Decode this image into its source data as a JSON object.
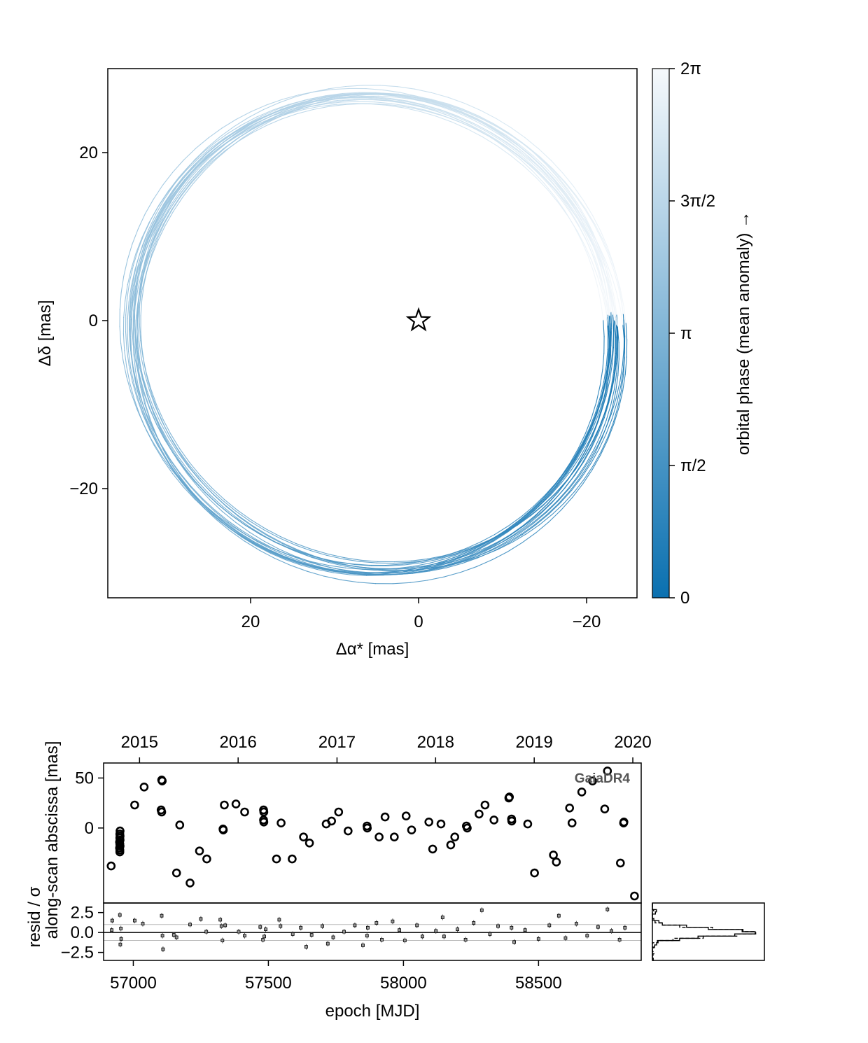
{
  "chart_data": [
    {
      "type": "line",
      "title": "",
      "xlabel": "Δα* [mas]",
      "ylabel": "Δδ [mas]",
      "xlim": [
        37,
        -26
      ],
      "ylim": [
        -33,
        30
      ],
      "x_reversed": true,
      "xticks": [
        {
          "value": 20,
          "label": "20"
        },
        {
          "value": 0,
          "label": "0"
        },
        {
          "value": -20,
          "label": "−20"
        }
      ],
      "yticks": [
        {
          "value": 20,
          "label": "20"
        },
        {
          "value": 0,
          "label": "0"
        },
        {
          "value": -20,
          "label": "−20"
        }
      ],
      "grid": false,
      "orbit_samples": 20,
      "orbit_shape": {
        "center": [
          5.5,
          -1.5
        ],
        "semi_axes": [
          29.0,
          28.0
        ],
        "rotation_deg": 33,
        "periapsis_mas": [
          -23.7,
          0.4
        ],
        "spread": 1.4
      },
      "colorbar": {
        "label": "orbital phase (mean anomaly) →",
        "range": [
          0,
          6.2832
        ],
        "ticks": [
          {
            "value": 0,
            "label": "0"
          },
          {
            "value": 1.5708,
            "label": "π/2"
          },
          {
            "value": 3.1416,
            "label": "π"
          },
          {
            "value": 4.7124,
            "label": "3π/2"
          },
          {
            "value": 6.2832,
            "label": "2π"
          }
        ],
        "color_low": "#0a70b0",
        "color_high": "#f6f9fc"
      },
      "star_marker": {
        "x": 0,
        "y": 0,
        "symbol": "star"
      }
    },
    {
      "type": "scatter",
      "title": "",
      "ylabel": "along-scan abscissa [mas]",
      "annotation": "GaiaDR4",
      "xlim": [
        56890,
        58880
      ],
      "ylim": [
        -75,
        65
      ],
      "yticks": [
        {
          "value": 50,
          "label": "50"
        },
        {
          "value": 0,
          "label": "0"
        }
      ],
      "top_axis_year_ticks": [
        {
          "mjd": 57023,
          "label": "2015"
        },
        {
          "mjd": 57388,
          "label": "2016"
        },
        {
          "mjd": 57754,
          "label": "2017"
        },
        {
          "mjd": 58119,
          "label": "2018"
        },
        {
          "mjd": 58484,
          "label": "2019"
        },
        {
          "mjd": 58849,
          "label": "2020"
        }
      ],
      "points": [
        [
          56918,
          -38
        ],
        [
          56949,
          -14
        ],
        [
          56950,
          -16
        ],
        [
          56951,
          -18
        ],
        [
          56949,
          -20
        ],
        [
          56950,
          -22
        ],
        [
          56951,
          -12
        ],
        [
          56950,
          -10
        ],
        [
          56951,
          -8
        ],
        [
          56950,
          -6
        ],
        [
          56951,
          -3
        ],
        [
          56950,
          -24
        ],
        [
          57005,
          23
        ],
        [
          57040,
          41
        ],
        [
          57105,
          48
        ],
        [
          57107,
          47
        ],
        [
          57103,
          18
        ],
        [
          57105,
          16
        ],
        [
          57160,
          -45
        ],
        [
          57172,
          3
        ],
        [
          57210,
          -55
        ],
        [
          57245,
          -23
        ],
        [
          57272,
          -31
        ],
        [
          57332,
          -1
        ],
        [
          57333,
          -2
        ],
        [
          57337,
          23
        ],
        [
          57380,
          24
        ],
        [
          57412,
          16
        ],
        [
          57482,
          18
        ],
        [
          57483,
          16
        ],
        [
          57482,
          8
        ],
        [
          57483,
          6
        ],
        [
          57530,
          -31
        ],
        [
          57547,
          5
        ],
        [
          57588,
          -31
        ],
        [
          57630,
          -9
        ],
        [
          57652,
          -15
        ],
        [
          57714,
          4
        ],
        [
          57734,
          7
        ],
        [
          57760,
          16
        ],
        [
          57795,
          -3
        ],
        [
          57865,
          2
        ],
        [
          57866,
          0
        ],
        [
          57910,
          -9
        ],
        [
          57932,
          11
        ],
        [
          57966,
          -9
        ],
        [
          58010,
          12
        ],
        [
          58030,
          -2
        ],
        [
          58094,
          6
        ],
        [
          58108,
          -21
        ],
        [
          58139,
          4
        ],
        [
          58175,
          -17
        ],
        [
          58190,
          -9
        ],
        [
          58233,
          2
        ],
        [
          58236,
          0
        ],
        [
          58280,
          14
        ],
        [
          58302,
          23
        ],
        [
          58335,
          8
        ],
        [
          58390,
          30
        ],
        [
          58392,
          31
        ],
        [
          58400,
          9
        ],
        [
          58401,
          7
        ],
        [
          58460,
          4
        ],
        [
          58485,
          -45
        ],
        [
          58555,
          -27
        ],
        [
          58566,
          -34
        ],
        [
          58615,
          20
        ],
        [
          58624,
          5
        ],
        [
          58660,
          36
        ],
        [
          58700,
          47
        ],
        [
          58745,
          19
        ],
        [
          58755,
          57
        ],
        [
          58803,
          -35
        ],
        [
          58815,
          5
        ],
        [
          58816,
          6
        ],
        [
          58855,
          -68
        ]
      ]
    },
    {
      "type": "scatter",
      "title": "",
      "xlabel": "epoch [MJD]",
      "ylabel": "resid / σ",
      "xlim": [
        56890,
        58880
      ],
      "ylim": [
        -3.5,
        3.7
      ],
      "xticks": [
        {
          "value": 57000,
          "label": "57000"
        },
        {
          "value": 57500,
          "label": "57500"
        },
        {
          "value": 58000,
          "label": "58000"
        },
        {
          "value": 58500,
          "label": "58500"
        }
      ],
      "yticks": [
        {
          "value": 2.5,
          "label": "2.5"
        },
        {
          "value": 0,
          "label": "0.0"
        },
        {
          "value": -2.5,
          "label": "−2.5"
        }
      ],
      "reference_lines": [
        1,
        -1
      ],
      "points": [
        [
          56920,
          0.3
        ],
        [
          56922,
          1.5
        ],
        [
          56950,
          2.2
        ],
        [
          56952,
          -1.5
        ],
        [
          56954,
          0.5
        ],
        [
          56955,
          -0.8
        ],
        [
          57005,
          1.5
        ],
        [
          57035,
          1.1
        ],
        [
          57105,
          2.1
        ],
        [
          57108,
          -0.4
        ],
        [
          57110,
          -2.1
        ],
        [
          57150,
          -0.3
        ],
        [
          57160,
          -0.6
        ],
        [
          57210,
          1.0
        ],
        [
          57250,
          1.7
        ],
        [
          57270,
          0.1
        ],
        [
          57322,
          1.6
        ],
        [
          57326,
          0.8
        ],
        [
          57330,
          -1.0
        ],
        [
          57340,
          0.9
        ],
        [
          57390,
          0.1
        ],
        [
          57412,
          -0.4
        ],
        [
          57470,
          0.7
        ],
        [
          57480,
          -0.9
        ],
        [
          57485,
          -0.5
        ],
        [
          57490,
          0.4
        ],
        [
          57540,
          1.6
        ],
        [
          57545,
          0.8
        ],
        [
          57590,
          -0.2
        ],
        [
          57620,
          0.6
        ],
        [
          57640,
          -1.8
        ],
        [
          57660,
          -0.3
        ],
        [
          57700,
          0.8
        ],
        [
          57720,
          -1.4
        ],
        [
          57740,
          -0.6
        ],
        [
          57780,
          0.1
        ],
        [
          57820,
          0.9
        ],
        [
          57850,
          -1.6
        ],
        [
          57865,
          -0.4
        ],
        [
          57868,
          0.6
        ],
        [
          57900,
          1.2
        ],
        [
          57920,
          -0.9
        ],
        [
          57960,
          1.4
        ],
        [
          57985,
          0.3
        ],
        [
          58005,
          -1.0
        ],
        [
          58050,
          0.9
        ],
        [
          58070,
          -0.5
        ],
        [
          58120,
          0.2
        ],
        [
          58145,
          1.9
        ],
        [
          58150,
          -0.5
        ],
        [
          58200,
          0.4
        ],
        [
          58230,
          -0.9
        ],
        [
          58260,
          1.2
        ],
        [
          58290,
          2.8
        ],
        [
          58320,
          -0.2
        ],
        [
          58350,
          0.8
        ],
        [
          58400,
          0.6
        ],
        [
          58410,
          -1.2
        ],
        [
          58450,
          0.3
        ],
        [
          58500,
          -0.8
        ],
        [
          58540,
          0.9
        ],
        [
          58575,
          2.1
        ],
        [
          58600,
          -0.7
        ],
        [
          58640,
          1.1
        ],
        [
          58680,
          -0.4
        ],
        [
          58720,
          0.7
        ],
        [
          58755,
          2.9
        ],
        [
          58770,
          0.2
        ],
        [
          58800,
          -0.9
        ],
        [
          58820,
          0.6
        ]
      ],
      "histogram": {
        "orientation": "horizontal",
        "overlay": "gaussian",
        "ylim": [
          -3.5,
          3.7
        ]
      }
    }
  ]
}
